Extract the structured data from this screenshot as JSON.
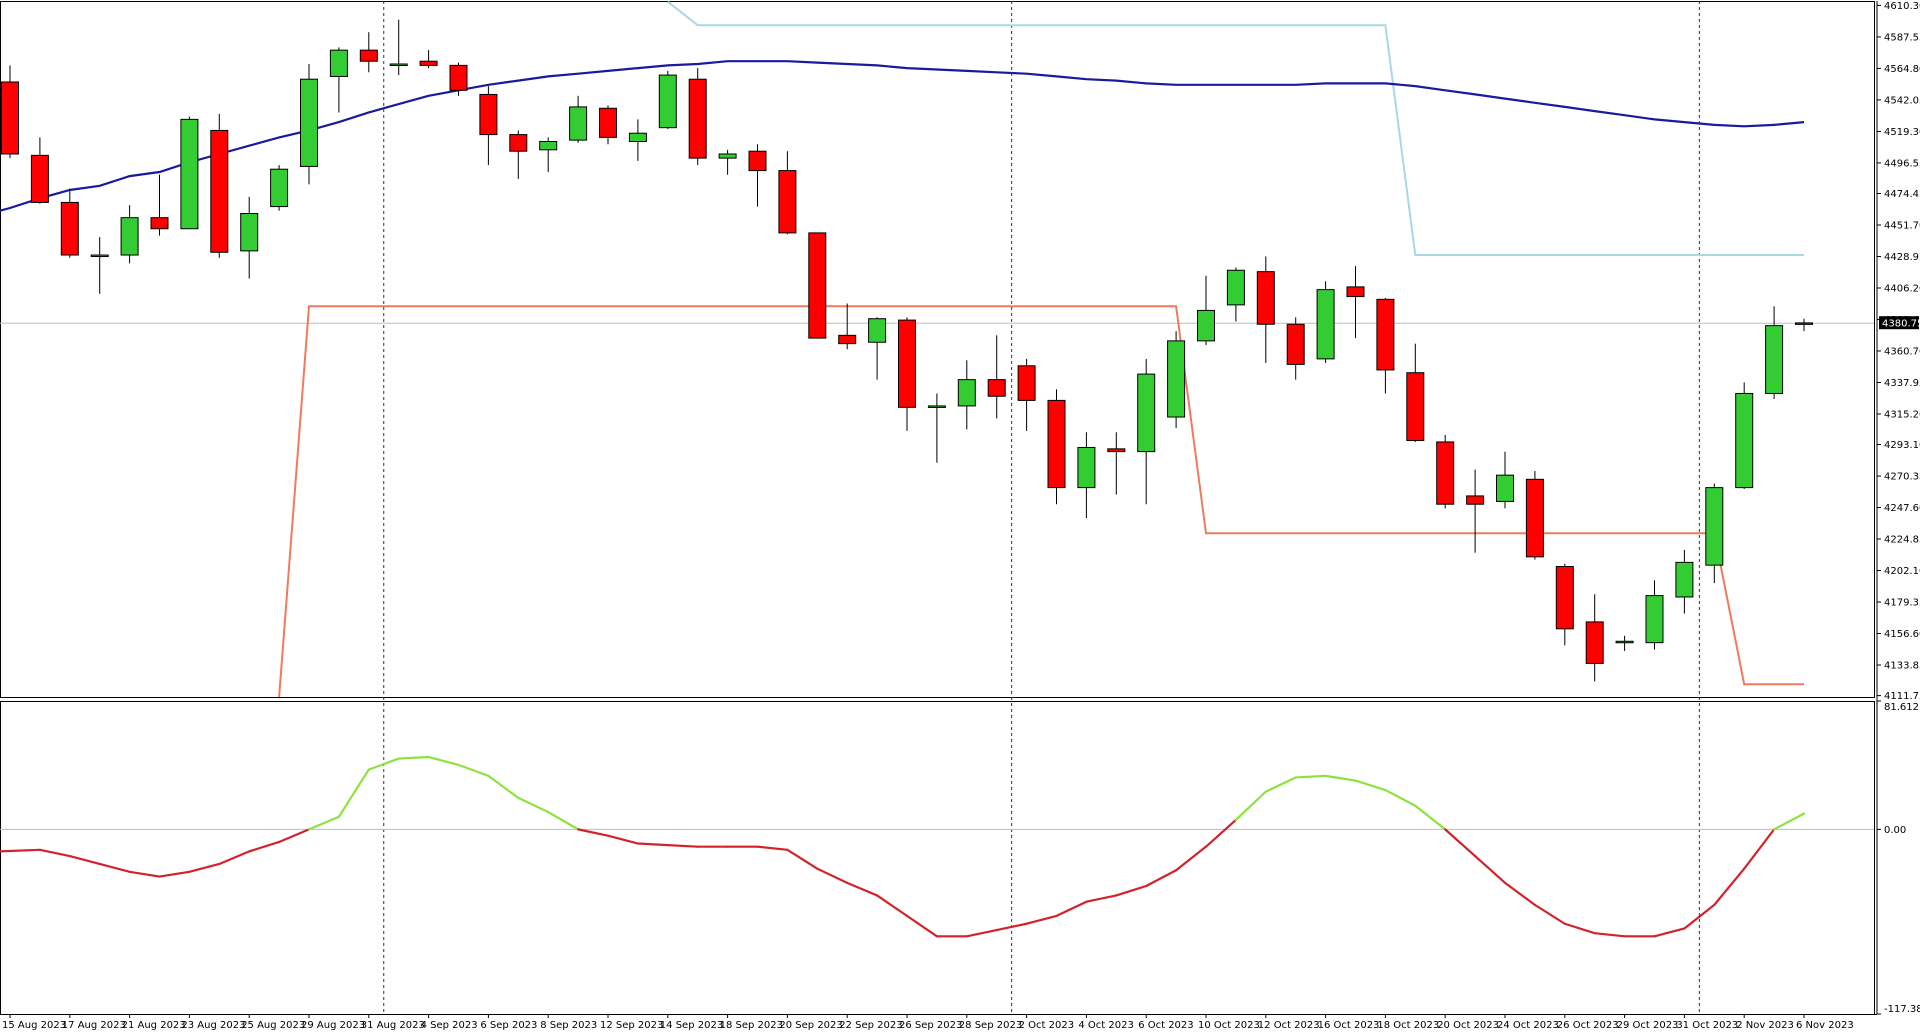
{
  "chart_data": {
    "type": "candlestick",
    "price_panel": {
      "yticks": [
        4610.3,
        4587.55,
        4564.8,
        4542.05,
        4519.3,
        4496.55,
        4474.45,
        4451.7,
        4428.95,
        4406.2,
        4383.45,
        4360.7,
        4337.95,
        4315.2,
        4293.1,
        4270.35,
        4247.6,
        4224.85,
        4202.1,
        4179.35,
        4156.6,
        4133.85,
        4111.75
      ],
      "ylim": [
        4110.75,
        4613.5
      ],
      "current_price": 4380.75,
      "current_price_label": "4380.75",
      "candles": [
        {
          "o": 4555,
          "h": 4567,
          "l": 4500,
          "c": 4503
        },
        {
          "o": 4502,
          "h": 4515,
          "l": 4467,
          "c": 4468
        },
        {
          "o": 4468,
          "h": 4478,
          "l": 4428,
          "c": 4430
        },
        {
          "o": 4430,
          "h": 4443,
          "l": 4402,
          "c": 4430
        },
        {
          "o": 4430,
          "h": 4466,
          "l": 4424,
          "c": 4457
        },
        {
          "o": 4457,
          "h": 4488,
          "l": 4444,
          "c": 4449
        },
        {
          "o": 4449,
          "h": 4530,
          "l": 4449,
          "c": 4528
        },
        {
          "o": 4520,
          "h": 4532,
          "l": 4428,
          "c": 4432
        },
        {
          "o": 4433,
          "h": 4472,
          "l": 4413,
          "c": 4460
        },
        {
          "o": 4465,
          "h": 4495,
          "l": 4462,
          "c": 4492
        },
        {
          "o": 4494,
          "h": 4568,
          "l": 4481,
          "c": 4557
        },
        {
          "o": 4559,
          "h": 4580,
          "l": 4533,
          "c": 4578
        },
        {
          "o": 4578,
          "h": 4591,
          "l": 4562,
          "c": 4570
        },
        {
          "o": 4567,
          "h": 4600,
          "l": 4560,
          "c": 4568
        },
        {
          "o": 4570,
          "h": 4578,
          "l": 4565,
          "c": 4567
        },
        {
          "o": 4567,
          "h": 4569,
          "l": 4545,
          "c": 4549
        },
        {
          "o": 4546,
          "h": 4552,
          "l": 4495,
          "c": 4517
        },
        {
          "o": 4517,
          "h": 4520,
          "l": 4485,
          "c": 4505
        },
        {
          "o": 4506,
          "h": 4515,
          "l": 4490,
          "c": 4512
        },
        {
          "o": 4513,
          "h": 4545,
          "l": 4511,
          "c": 4537
        },
        {
          "o": 4536,
          "h": 4538,
          "l": 4510,
          "c": 4515
        },
        {
          "o": 4512,
          "h": 4528,
          "l": 4498,
          "c": 4518
        },
        {
          "o": 4522,
          "h": 4563,
          "l": 4521,
          "c": 4560
        },
        {
          "o": 4557,
          "h": 4565,
          "l": 4495,
          "c": 4500
        },
        {
          "o": 4500,
          "h": 4506,
          "l": 4488,
          "c": 4503
        },
        {
          "o": 4505,
          "h": 4510,
          "l": 4465,
          "c": 4491
        },
        {
          "o": 4491,
          "h": 4505,
          "l": 4445,
          "c": 4446
        },
        {
          "o": 4446,
          "h": 4446,
          "l": 4370,
          "c": 4370
        },
        {
          "o": 4372,
          "h": 4395,
          "l": 4362,
          "c": 4366
        },
        {
          "o": 4367,
          "h": 4385,
          "l": 4340,
          "c": 4384
        },
        {
          "o": 4383,
          "h": 4385,
          "l": 4303,
          "c": 4320
        },
        {
          "o": 4320,
          "h": 4330,
          "l": 4280,
          "c": 4321
        },
        {
          "o": 4321,
          "h": 4354,
          "l": 4304,
          "c": 4340
        },
        {
          "o": 4340,
          "h": 4372,
          "l": 4312,
          "c": 4328
        },
        {
          "o": 4350,
          "h": 4355,
          "l": 4303,
          "c": 4325
        },
        {
          "o": 4325,
          "h": 4333,
          "l": 4250,
          "c": 4262
        },
        {
          "o": 4262,
          "h": 4302,
          "l": 4240,
          "c": 4291
        },
        {
          "o": 4290,
          "h": 4302,
          "l": 4257,
          "c": 4288
        },
        {
          "o": 4288,
          "h": 4355,
          "l": 4250,
          "c": 4344
        },
        {
          "o": 4313,
          "h": 4375,
          "l": 4305,
          "c": 4368
        },
        {
          "o": 4368,
          "h": 4415,
          "l": 4365,
          "c": 4390
        },
        {
          "o": 4394,
          "h": 4421,
          "l": 4382,
          "c": 4419
        },
        {
          "o": 4418,
          "h": 4429,
          "l": 4352,
          "c": 4380
        },
        {
          "o": 4380,
          "h": 4385,
          "l": 4340,
          "c": 4351
        },
        {
          "o": 4355,
          "h": 4411,
          "l": 4352,
          "c": 4405
        },
        {
          "o": 4407,
          "h": 4422,
          "l": 4370,
          "c": 4400
        },
        {
          "o": 4398,
          "h": 4399,
          "l": 4330,
          "c": 4347
        },
        {
          "o": 4345,
          "h": 4366,
          "l": 4295,
          "c": 4296
        },
        {
          "o": 4295,
          "h": 4300,
          "l": 4247,
          "c": 4250
        },
        {
          "o": 4256,
          "h": 4275,
          "l": 4215,
          "c": 4250
        },
        {
          "o": 4252,
          "h": 4288,
          "l": 4247,
          "c": 4271
        },
        {
          "o": 4268,
          "h": 4274,
          "l": 4210,
          "c": 4212
        },
        {
          "o": 4205,
          "h": 4207,
          "l": 4148,
          "c": 4160
        },
        {
          "o": 4165,
          "h": 4185,
          "l": 4122,
          "c": 4135
        },
        {
          "o": 4150,
          "h": 4155,
          "l": 4144,
          "c": 4151
        },
        {
          "o": 4150,
          "h": 4195,
          "l": 4145,
          "c": 4184
        },
        {
          "o": 4183,
          "h": 4217,
          "l": 4171,
          "c": 4208
        },
        {
          "o": 4206,
          "h": 4265,
          "l": 4193,
          "c": 4262
        },
        {
          "o": 4262,
          "h": 4338,
          "l": 4261,
          "c": 4330
        },
        {
          "o": 4330,
          "h": 4393,
          "l": 4326,
          "c": 4379
        },
        {
          "o": 4381,
          "h": 4384,
          "l": 4375,
          "c": 4380
        }
      ],
      "ma_line": [
        4464,
        4471,
        4477,
        4480,
        4487,
        4490,
        4497,
        4503,
        4509,
        4515,
        4520,
        4526,
        4533,
        4539,
        4545,
        4549,
        4553,
        4556,
        4559,
        4561,
        4563,
        4565,
        4567,
        4568,
        4570,
        4570,
        4570,
        4569,
        4568,
        4567,
        4565,
        4564,
        4563,
        4562,
        4561,
        4559,
        4557,
        4556,
        4554,
        4553,
        4553,
        4553,
        4553,
        4553,
        4554,
        4554,
        4554,
        4552,
        4549,
        4546,
        4543,
        4540,
        4537,
        4534,
        4531,
        4528,
        4526,
        4524,
        4523,
        4524,
        4526
      ],
      "upper_band_steps": [
        [
          22,
          4613
        ],
        [
          23,
          4596
        ],
        [
          46,
          4596
        ],
        [
          47,
          4430
        ],
        [
          60,
          4430
        ]
      ],
      "lower_band_steps": [
        [
          9,
          4110
        ],
        [
          10,
          4393
        ],
        [
          39,
          4393
        ],
        [
          40,
          4229
        ],
        [
          57,
          4229
        ],
        [
          58,
          4120
        ],
        [
          60,
          4120
        ]
      ]
    },
    "oscillator_panel": {
      "yticks_labels": [
        "81.6123",
        "0.00",
        "-117.3814"
      ],
      "ylim": [
        -117.3814,
        81.6123
      ],
      "zero_level": 0,
      "values": [
        -14,
        -13,
        -17,
        -22,
        -27,
        -30,
        -27,
        -22,
        -14,
        -8,
        0,
        8,
        38,
        45,
        46,
        41,
        34,
        20,
        11,
        0,
        -4,
        -9,
        -10,
        -11,
        -11,
        -11,
        -13,
        -25,
        -34,
        -42,
        -55,
        -68,
        -68,
        -64,
        -60,
        -55,
        -46,
        -42,
        -36,
        -26,
        -11,
        6,
        24,
        33,
        34,
        31,
        25,
        15,
        0,
        -17,
        -34,
        -48,
        -60,
        -66,
        -68,
        -68,
        -63,
        -48,
        -25,
        0,
        10
      ],
      "bullish_color": "#8de23d",
      "bearish_color": "#d2232a"
    },
    "x_labels": [
      {
        "i": 0,
        "label": "15 Aug 2023"
      },
      {
        "i": 2,
        "label": "17 Aug 2023"
      },
      {
        "i": 4,
        "label": "21 Aug 2023"
      },
      {
        "i": 6,
        "label": "23 Aug 2023"
      },
      {
        "i": 8,
        "label": "25 Aug 2023"
      },
      {
        "i": 10,
        "label": "29 Aug 2023"
      },
      {
        "i": 12,
        "label": "31 Aug 2023"
      },
      {
        "i": 14,
        "label": "4 Sep 2023"
      },
      {
        "i": 16,
        "label": "6 Sep 2023"
      },
      {
        "i": 18,
        "label": "8 Sep 2023"
      },
      {
        "i": 20,
        "label": "12 Sep 2023"
      },
      {
        "i": 22,
        "label": "14 Sep 2023"
      },
      {
        "i": 24,
        "label": "18 Sep 2023"
      },
      {
        "i": 26,
        "label": "20 Sep 2023"
      },
      {
        "i": 28,
        "label": "22 Sep 2023"
      },
      {
        "i": 30,
        "label": "26 Sep 2023"
      },
      {
        "i": 32,
        "label": "28 Sep 2023"
      },
      {
        "i": 34,
        "label": "2 Oct 2023"
      },
      {
        "i": 36,
        "label": "4 Oct 2023"
      },
      {
        "i": 38,
        "label": "6 Oct 2023"
      },
      {
        "i": 40,
        "label": "10 Oct 2023"
      },
      {
        "i": 42,
        "label": "12 Oct 2023"
      },
      {
        "i": 44,
        "label": "16 Oct 2023"
      },
      {
        "i": 46,
        "label": "18 Oct 2023"
      },
      {
        "i": 48,
        "label": "20 Oct 2023"
      },
      {
        "i": 50,
        "label": "24 Oct 2023"
      },
      {
        "i": 52,
        "label": "26 Oct 2023"
      },
      {
        "i": 54,
        "label": "29 Oct 2023"
      },
      {
        "i": 56,
        "label": "31 Oct 2023"
      },
      {
        "i": 58,
        "label": "2 Nov 2023"
      },
      {
        "i": 60,
        "label": "6 Nov 2023"
      }
    ],
    "period_separators": [
      "1 Sep 2023",
      "2 Oct 2023",
      "1 Nov 2023"
    ],
    "colors": {
      "bull_candle": "#33cc33",
      "bear_candle": "#ff0000",
      "ma_line": "#1a1a9c",
      "upper_band": "#a8d8e6",
      "lower_band": "#f07a5e",
      "grid_level": "#bdbdbd"
    }
  }
}
